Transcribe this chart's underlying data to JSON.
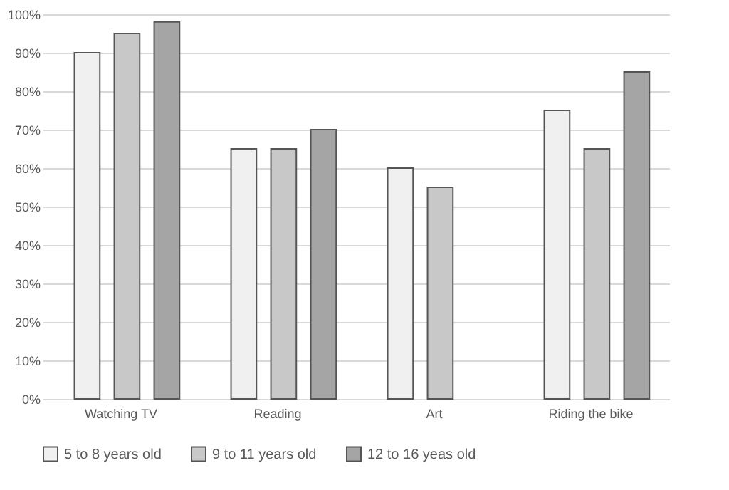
{
  "chart_data": {
    "type": "bar",
    "categories": [
      "Watching TV",
      "Reading",
      "Art",
      "Riding the bike"
    ],
    "series": [
      {
        "name": "5 to 8 years old",
        "color": "#f0f0f0",
        "values": [
          90,
          65,
          60,
          75
        ]
      },
      {
        "name": "9 to 11 years old",
        "color": "#c8c8c8",
        "values": [
          95,
          65,
          55,
          65
        ]
      },
      {
        "name": "12 to 16 yeas old",
        "color": "#a5a5a5",
        "values": [
          98,
          70,
          null,
          85
        ]
      }
    ],
    "ylim": [
      0,
      100
    ],
    "yticks": [
      {
        "value": 0,
        "label": "0%"
      },
      {
        "value": 10,
        "label": "10%"
      },
      {
        "value": 20,
        "label": "20%"
      },
      {
        "value": 30,
        "label": "30%"
      },
      {
        "value": 40,
        "label": "40%"
      },
      {
        "value": 50,
        "label": "50%"
      },
      {
        "value": 60,
        "label": "60%"
      },
      {
        "value": 70,
        "label": "70%"
      },
      {
        "value": 80,
        "label": "80%"
      },
      {
        "value": 90,
        "label": "90%"
      },
      {
        "value": 100,
        "label": "100%"
      }
    ],
    "grid": "y",
    "legend": "bottom"
  }
}
